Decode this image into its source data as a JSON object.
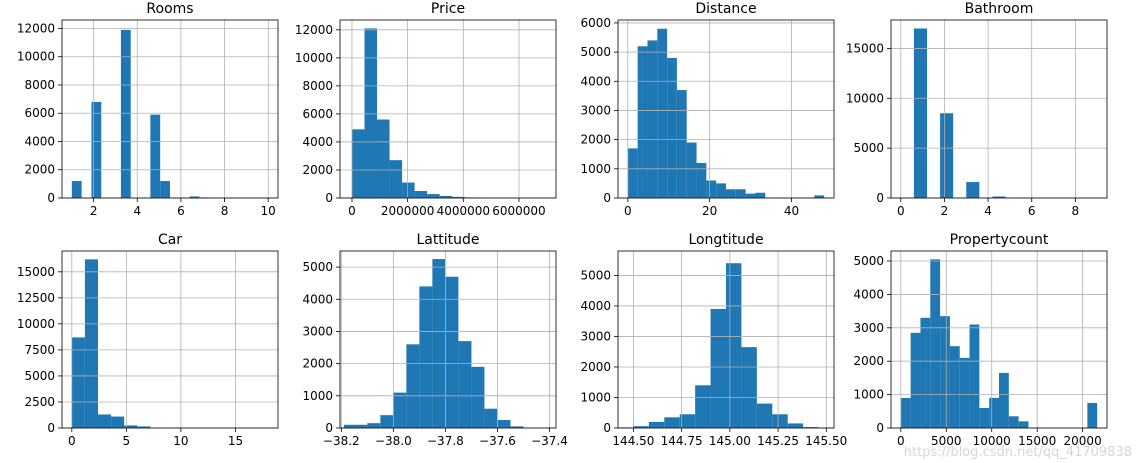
{
  "figure": {
    "bar_color": "#1f77b4",
    "watermark": "https://blog.csdn.net/qq_41709838"
  },
  "chart_data": [
    {
      "type": "bar",
      "subtype": "histogram",
      "title": "Rooms",
      "xlim": [
        0.55,
        10.45
      ],
      "ylim": [
        0,
        12600
      ],
      "xticks": [
        2,
        4,
        6,
        8,
        10
      ],
      "xtick_labels": [
        "2",
        "4",
        "6",
        "8",
        "10"
      ],
      "yticks": [
        0,
        2000,
        4000,
        6000,
        8000,
        10000,
        12000
      ],
      "ytick_labels": [
        "0",
        "2000",
        "4000",
        "6000",
        "8000",
        "10000",
        "12000"
      ],
      "bins": [
        1,
        1.45,
        1.9,
        2.35,
        2.8,
        3.25,
        3.7,
        4.15,
        4.6,
        5.05,
        5.5,
        5.95,
        6.4,
        6.85,
        7.3,
        7.75,
        8.2,
        8.65,
        9.1,
        9.55,
        10
      ],
      "counts": [
        1200,
        0,
        6800,
        0,
        0,
        11900,
        0,
        0,
        5900,
        1200,
        0,
        0,
        110,
        40,
        0,
        20,
        0,
        0,
        0,
        10
      ],
      "grid": true
    },
    {
      "type": "bar",
      "subtype": "histogram",
      "title": "Price",
      "xlim": [
        -430000,
        7330000
      ],
      "ylim": [
        0,
        12700
      ],
      "xticks": [
        0,
        2000000,
        4000000,
        6000000
      ],
      "xtick_labels": [
        "0",
        "2000000",
        "4000000",
        "6000000"
      ],
      "yticks": [
        0,
        2000,
        4000,
        6000,
        8000,
        10000,
        12000
      ],
      "ytick_labels": [
        "0",
        "2000",
        "4000",
        "6000",
        "8000",
        "10000",
        "12000"
      ],
      "bins": [
        0,
        450000,
        900000,
        1350000,
        1800000,
        2250000,
        2700000,
        3150000,
        3600000,
        4050000,
        4500000,
        4950000,
        5400000,
        5850000,
        6300000,
        6750000,
        7200000
      ],
      "counts": [
        4900,
        12100,
        5600,
        2700,
        1100,
        500,
        280,
        150,
        80,
        40,
        20,
        10,
        6,
        4,
        2,
        1
      ],
      "grid": true
    },
    {
      "type": "bar",
      "subtype": "histogram",
      "title": "Distance",
      "xlim": [
        -2.4,
        50.4
      ],
      "ylim": [
        0,
        6100
      ],
      "xticks": [
        0,
        20,
        40
      ],
      "xtick_labels": [
        "0",
        "20",
        "40"
      ],
      "yticks": [
        0,
        1000,
        2000,
        3000,
        4000,
        5000,
        6000
      ],
      "ytick_labels": [
        "0",
        "1000",
        "2000",
        "3000",
        "4000",
        "5000",
        "6000"
      ],
      "bins": [
        0,
        2.4,
        4.8,
        7.2,
        9.6,
        12,
        14.4,
        16.8,
        19.2,
        21.6,
        24,
        26.4,
        28.8,
        31.2,
        33.6,
        36,
        38.4,
        40.8,
        43.2,
        45.6,
        48
      ],
      "counts": [
        1700,
        5200,
        5400,
        5800,
        4800,
        3700,
        1900,
        1200,
        600,
        500,
        300,
        300,
        150,
        180,
        0,
        10,
        0,
        5,
        0,
        90
      ],
      "grid": true
    },
    {
      "type": "bar",
      "subtype": "histogram",
      "title": "Bathroom",
      "xlim": [
        -0.45,
        9.45
      ],
      "ylim": [
        0,
        17850
      ],
      "xticks": [
        0,
        2,
        4,
        6,
        8
      ],
      "xtick_labels": [
        "0",
        "2",
        "4",
        "6",
        "8"
      ],
      "yticks": [
        0,
        5000,
        10000,
        15000
      ],
      "ytick_labels": [
        "0",
        "5000",
        "10000",
        "15000"
      ],
      "bins": [
        0,
        0.6,
        1.2,
        1.8,
        2.4,
        3.0,
        3.6,
        4.2,
        4.8,
        5.4,
        6.0,
        6.6,
        7.2,
        7.8,
        8.4,
        9.0
      ],
      "counts": [
        0,
        17000,
        0,
        8500,
        0,
        1600,
        0,
        150,
        0,
        40,
        0,
        10,
        0,
        5,
        5
      ],
      "grid": true
    },
    {
      "type": "bar",
      "subtype": "histogram",
      "title": "Car",
      "xlim": [
        -0.9,
        18.9
      ],
      "ylim": [
        0,
        17000
      ],
      "xticks": [
        0,
        5,
        10,
        15
      ],
      "xtick_labels": [
        "0",
        "5",
        "10",
        "15"
      ],
      "yticks": [
        0,
        2500,
        5000,
        7500,
        10000,
        12500,
        15000
      ],
      "ytick_labels": [
        "0",
        "2500",
        "5000",
        "7500",
        "10000",
        "12500",
        "15000"
      ],
      "bins": [
        0,
        1.2,
        2.4,
        3.6,
        4.8,
        6.0,
        7.2,
        8.4,
        9.6,
        10.8,
        12.0,
        13.2,
        14.4,
        15.6,
        16.8,
        18.0
      ],
      "counts": [
        8700,
        16200,
        1300,
        1100,
        250,
        150,
        30,
        20,
        10,
        5,
        3,
        2,
        1,
        1,
        1
      ],
      "grid": true
    },
    {
      "type": "bar",
      "subtype": "histogram",
      "title": "Lattitude",
      "xlim": [
        -38.205,
        -37.375
      ],
      "ylim": [
        0,
        5500
      ],
      "xticks": [
        -38.2,
        -38.0,
        -37.8,
        -37.6,
        -37.4
      ],
      "xtick_labels": [
        "−38.2",
        "−38.0",
        "−37.8",
        "−37.6",
        "−37.4"
      ],
      "yticks": [
        0,
        1000,
        2000,
        3000,
        4000,
        5000
      ],
      "ytick_labels": [
        "0",
        "1000",
        "2000",
        "3000",
        "4000",
        "5000"
      ],
      "bins": [
        -38.19,
        -38.1,
        -38.05,
        -38.0,
        -37.95,
        -37.9,
        -37.85,
        -37.8,
        -37.75,
        -37.7,
        -37.65,
        -37.6,
        -37.55,
        -37.5
      ],
      "counts": [
        100,
        150,
        400,
        1100,
        2600,
        4400,
        5250,
        4700,
        2700,
        1900,
        600,
        250,
        50
      ],
      "grid": true
    },
    {
      "type": "bar",
      "subtype": "histogram",
      "title": "Longtitude",
      "xlim": [
        144.42,
        145.54
      ],
      "ylim": [
        0,
        5800
      ],
      "xticks": [
        144.5,
        144.75,
        145.0,
        145.25,
        145.5
      ],
      "xtick_labels": [
        "144.50",
        "144.75",
        "145.00",
        "145.25",
        "145.50"
      ],
      "yticks": [
        0,
        1000,
        2000,
        3000,
        4000,
        5000
      ],
      "ytick_labels": [
        "0",
        "1000",
        "2000",
        "3000",
        "4000",
        "5000"
      ],
      "bins": [
        144.43,
        144.5,
        144.58,
        144.66,
        144.74,
        144.82,
        144.9,
        144.98,
        145.06,
        145.14,
        145.22,
        145.3,
        145.38,
        145.46,
        145.53
      ],
      "counts": [
        20,
        60,
        200,
        350,
        450,
        1400,
        3900,
        5400,
        2650,
        800,
        450,
        150,
        30,
        10
      ],
      "grid": true
    },
    {
      "type": "bar",
      "subtype": "histogram",
      "title": "Propertycount",
      "xlim": [
        -1080,
        22680
      ],
      "ylim": [
        0,
        5300
      ],
      "xticks": [
        0,
        5000,
        10000,
        15000,
        20000
      ],
      "xtick_labels": [
        "0",
        "5000",
        "10000",
        "15000",
        "20000"
      ],
      "yticks": [
        0,
        1000,
        2000,
        3000,
        4000,
        5000
      ],
      "ytick_labels": [
        "0",
        "1000",
        "2000",
        "3000",
        "4000",
        "5000"
      ],
      "bins": [
        0,
        1080,
        2160,
        3240,
        4320,
        5400,
        6480,
        7560,
        8640,
        9720,
        10800,
        11880,
        12960,
        14040,
        15120,
        16200,
        17280,
        18360,
        19440,
        20520,
        21600
      ],
      "counts": [
        900,
        2850,
        3300,
        5050,
        3350,
        2450,
        2100,
        3100,
        600,
        900,
        1650,
        350,
        200,
        0,
        0,
        0,
        0,
        0,
        0,
        750
      ],
      "grid": true
    }
  ]
}
